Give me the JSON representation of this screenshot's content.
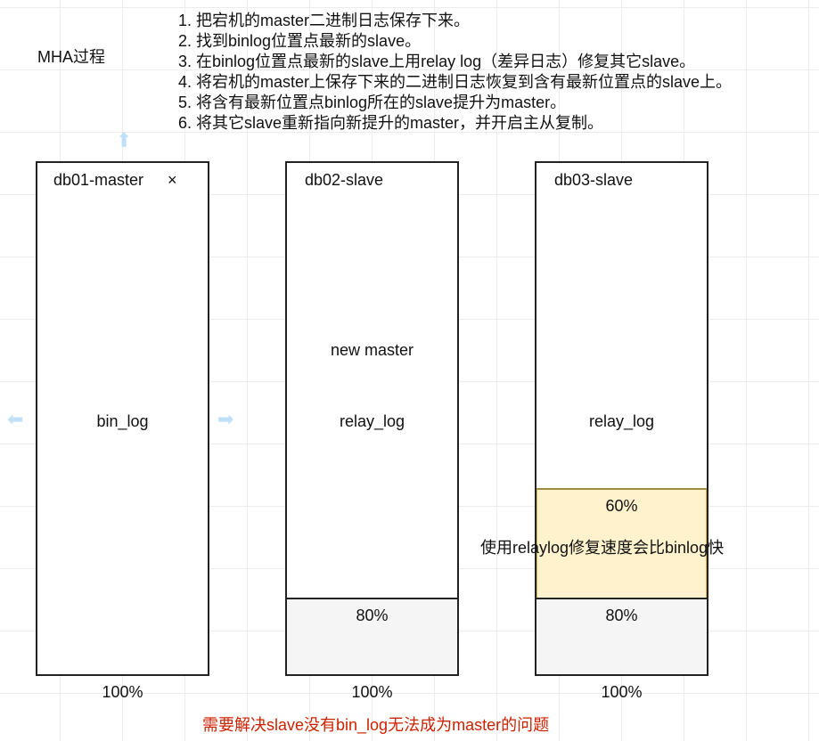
{
  "title": "MHA过程",
  "steps": [
    "1. 把宕机的master二进制日志保存下来。",
    "2. 找到binlog位置点最新的slave。",
    "3. 在binlog位置点最新的slave上用relay log（差异日志）修复其它slave。",
    "4. 将宕机的master上保存下来的二进制日志恢复到含有最新位置点的slave上。",
    "5. 将含有最新位置点binlog所在的slave提升为master。",
    "6. 将其它slave重新指向新提升的master，并开启主从复制。"
  ],
  "nodes": [
    {
      "name": "db01-master",
      "mark": "×",
      "log": "bin_log",
      "total": "100%"
    },
    {
      "name": "db02-slave",
      "role": "new master",
      "log": "relay_log",
      "part": "80%",
      "total": "100%"
    },
    {
      "name": "db03-slave",
      "log": "relay_log",
      "part_yellow": "60%",
      "part": "80%",
      "total": "100%"
    }
  ],
  "note": "使用relaylog修复速度会比binlog快",
  "problem": "需要解决slave没有bin_log无法成为master的问题",
  "colors": {
    "yellow_fill": "#fff2cc",
    "yellow_border": "#d6b656",
    "gray_fill": "#f5f5f5",
    "problem_text": "#cc2200"
  }
}
